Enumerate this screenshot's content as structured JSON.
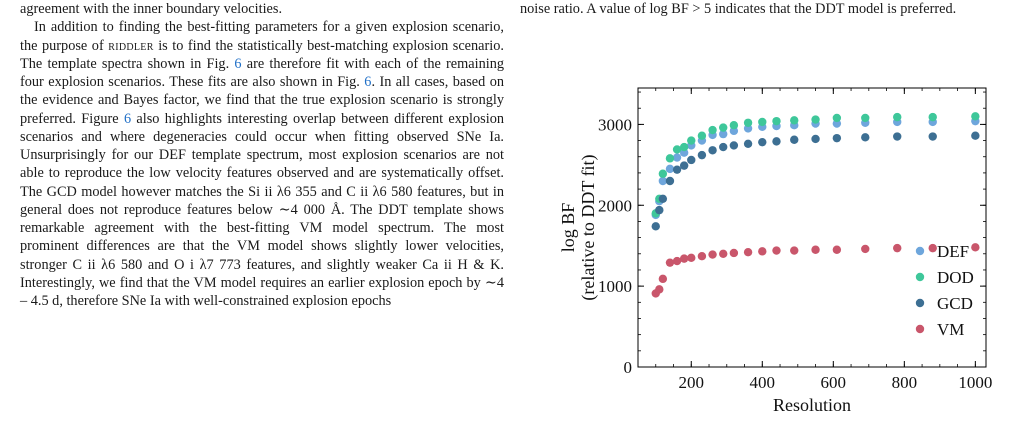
{
  "left_column": {
    "p1_tail": "agreement with the inner boundary velocities.",
    "p2_parts": [
      "In addition to finding the best-fitting parameters for a given explosion scenario, the purpose of ",
      "riddler",
      " is to find the statistically best-matching explosion scenario. The template spectra shown in Fig. ",
      "6",
      " are therefore fit with each of the remaining four explosion scenarios. These fits are also shown in Fig. ",
      "6",
      ". In all cases, based on the evidence and Bayes factor, we find that the true explosion scenario is strongly preferred. Figure ",
      "6",
      " also highlights interesting overlap between different explosion scenarios and where degeneracies could occur when fitting observed SNe Ia. Unsurprisingly for our DEF template spectrum, most explosion scenarios are not able to reproduce the low velocity features observed and are systematically offset. The GCD model however matches the Si ii λ6 355 and C ii λ6 580 features, but in general does not reproduce features below ∼4 000 Å. The DDT template shows remarkable agreement with the best-fitting VM model spectrum. The most prominent differences are that the VM model shows slightly lower velocities, stronger C ii λ6 580 and O i λ7 773 features, and slightly weaker Ca ii H & K. Interestingly, we find that the VM model requires an earlier explosion epoch by ∼4 – 4.5 d, therefore SNe Ia with well-constrained explosion epochs"
    ]
  },
  "caption_tail": "noise ratio. A value of log BF > 5 indicates that the DDT model is preferred.",
  "chart_data": {
    "type": "scatter",
    "xlabel": "Resolution",
    "ylabel_lines": [
      "log BF",
      "(relative to DDT fit)"
    ],
    "xlim": [
      50,
      1030
    ],
    "ylim": [
      0,
      3450
    ],
    "xticks": [
      200,
      400,
      600,
      800,
      1000
    ],
    "yticks": [
      0,
      1000,
      2000,
      3000
    ],
    "grid": false,
    "legend_position": "lower-right",
    "x": [
      100,
      110,
      120,
      140,
      160,
      180,
      200,
      230,
      260,
      290,
      320,
      360,
      400,
      440,
      490,
      550,
      610,
      690,
      780,
      880,
      1000
    ],
    "series": [
      {
        "name": "DEF",
        "color": "#6ea6dc",
        "values": [
          1880,
          2050,
          2300,
          2450,
          2590,
          2650,
          2740,
          2800,
          2870,
          2880,
          2920,
          2950,
          2970,
          2980,
          2990,
          3010,
          3010,
          3020,
          3030,
          3030,
          3040
        ]
      },
      {
        "name": "DOD",
        "color": "#3ec79a",
        "values": [
          1900,
          2080,
          2390,
          2580,
          2690,
          2720,
          2800,
          2860,
          2930,
          2960,
          2990,
          3020,
          3030,
          3040,
          3050,
          3060,
          3080,
          3080,
          3090,
          3090,
          3100
        ]
      },
      {
        "name": "GCD",
        "color": "#3d6f93",
        "values": [
          1740,
          1940,
          2080,
          2300,
          2440,
          2490,
          2560,
          2620,
          2680,
          2720,
          2740,
          2760,
          2780,
          2790,
          2810,
          2820,
          2830,
          2840,
          2850,
          2850,
          2860
        ]
      },
      {
        "name": "VM",
        "color": "#c9566b",
        "values": [
          910,
          960,
          1090,
          1290,
          1310,
          1340,
          1350,
          1370,
          1390,
          1400,
          1410,
          1420,
          1430,
          1440,
          1440,
          1450,
          1450,
          1460,
          1470,
          1470,
          1480
        ]
      }
    ]
  }
}
